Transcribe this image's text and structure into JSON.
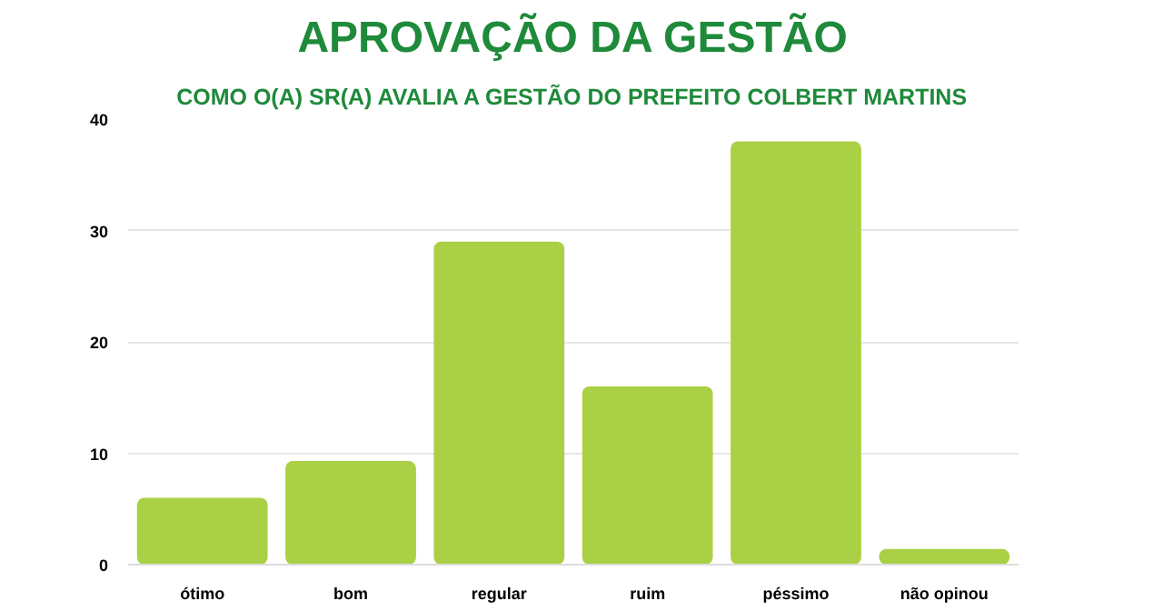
{
  "chart_data": {
    "type": "bar",
    "title": "APROVAÇÃO DA GESTÃO",
    "subtitle": "COMO O(A) SR(A) AVALIA A GESTÃO DO PREFEITO COLBERT MARTINS",
    "categories": [
      "ótimo",
      "bom",
      "regular",
      "ruim",
      "péssimo",
      "não opinou"
    ],
    "values": [
      6,
      9.3,
      29,
      16,
      38,
      1.4
    ],
    "color": "#aad046",
    "ylim": [
      0,
      40
    ],
    "yticks": [
      0,
      10,
      20,
      30,
      40
    ],
    "grid": "y"
  }
}
